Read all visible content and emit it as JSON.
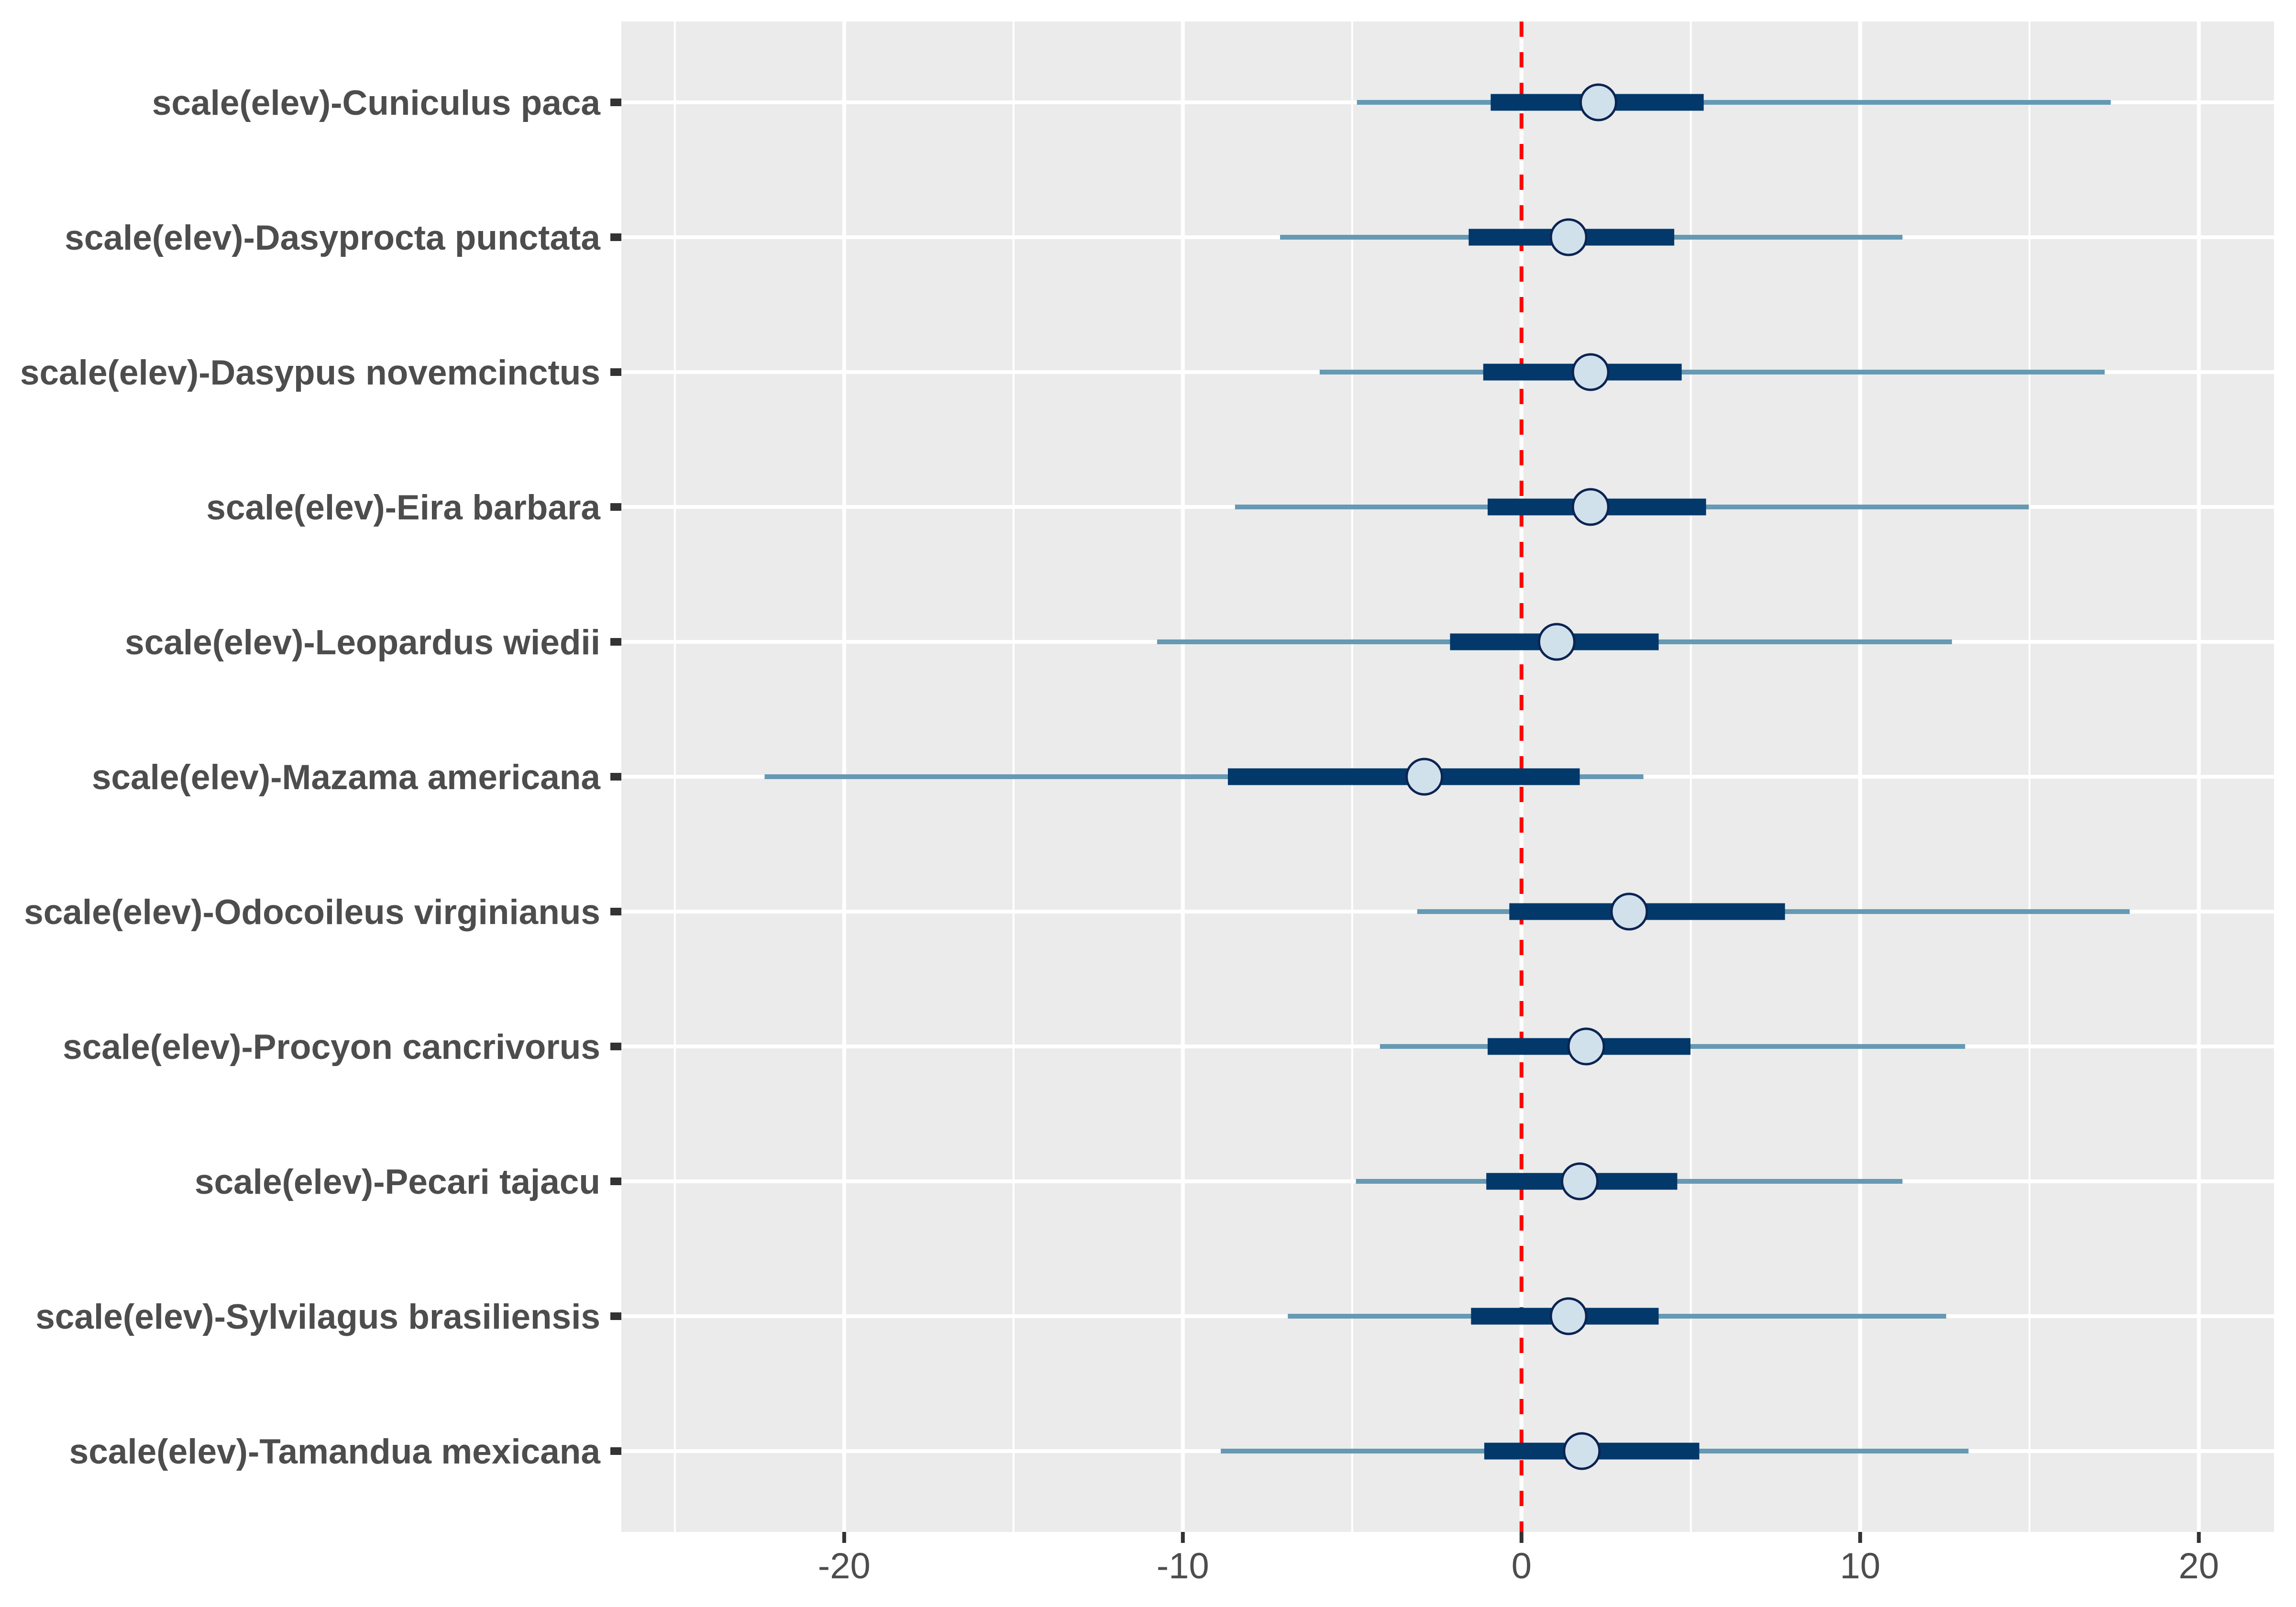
{
  "chart_data": {
    "type": "interval",
    "title": "",
    "xlabel": "",
    "ylabel": "",
    "xlim": [
      -26.58,
      22.22
    ],
    "x_ticks": [
      -20,
      -10,
      0,
      10,
      20
    ],
    "x_tick_labels": [
      "-20",
      "-10",
      "0",
      "10",
      "20"
    ],
    "x_minor_gridlines": [
      -25,
      -15,
      -5,
      5,
      15
    ],
    "reference_line": {
      "x": 0,
      "style": "dashed",
      "color": "#FF0000"
    },
    "grid": true,
    "legend": "none",
    "colors": {
      "panel_background": "#EBEBEB",
      "grid": "#FFFFFF",
      "outer_interval": "#6699B3",
      "inner_interval": "#03386B",
      "point_fill": "#D1E1EC",
      "point_stroke": "#0B2452",
      "axis_text": "#4D4D4D",
      "axis_ticks": "#333333"
    },
    "categories": [
      "scale(elev)-Cuniculus paca",
      "scale(elev)-Dasyprocta punctata",
      "scale(elev)-Dasypus novemcinctus",
      "scale(elev)-Eira barbara",
      "scale(elev)-Leopardus wiedii",
      "scale(elev)-Mazama americana",
      "scale(elev)-Odocoileus virginianus",
      "scale(elev)-Procyon cancrivorus",
      "scale(elev)-Pecari tajacu",
      "scale(elev)-Sylvilagus brasiliensis",
      "scale(elev)-Tamandua mexicana"
    ],
    "series": [
      {
        "name": "estimate",
        "values": [
          2.27,
          1.39,
          2.04,
          2.04,
          1.04,
          -2.87,
          3.18,
          1.91,
          1.72,
          1.39,
          1.78
        ]
      },
      {
        "name": "inner_low",
        "values": [
          -0.91,
          -1.56,
          -1.13,
          -1.0,
          -2.11,
          -8.67,
          -0.36,
          -1.0,
          -1.04,
          -1.49,
          -1.1
        ]
      },
      {
        "name": "inner_high",
        "values": [
          5.38,
          4.51,
          4.73,
          5.45,
          4.05,
          1.72,
          7.78,
          4.99,
          4.6,
          4.05,
          5.25
        ]
      },
      {
        "name": "outer_low",
        "values": [
          -4.86,
          -7.13,
          -5.96,
          -8.46,
          -10.76,
          -22.35,
          -3.08,
          -4.18,
          -4.89,
          -6.9,
          -8.88
        ]
      },
      {
        "name": "outer_high",
        "values": [
          17.4,
          11.25,
          17.22,
          14.98,
          12.71,
          3.6,
          17.96,
          13.1,
          11.25,
          12.54,
          13.2
        ]
      }
    ]
  }
}
